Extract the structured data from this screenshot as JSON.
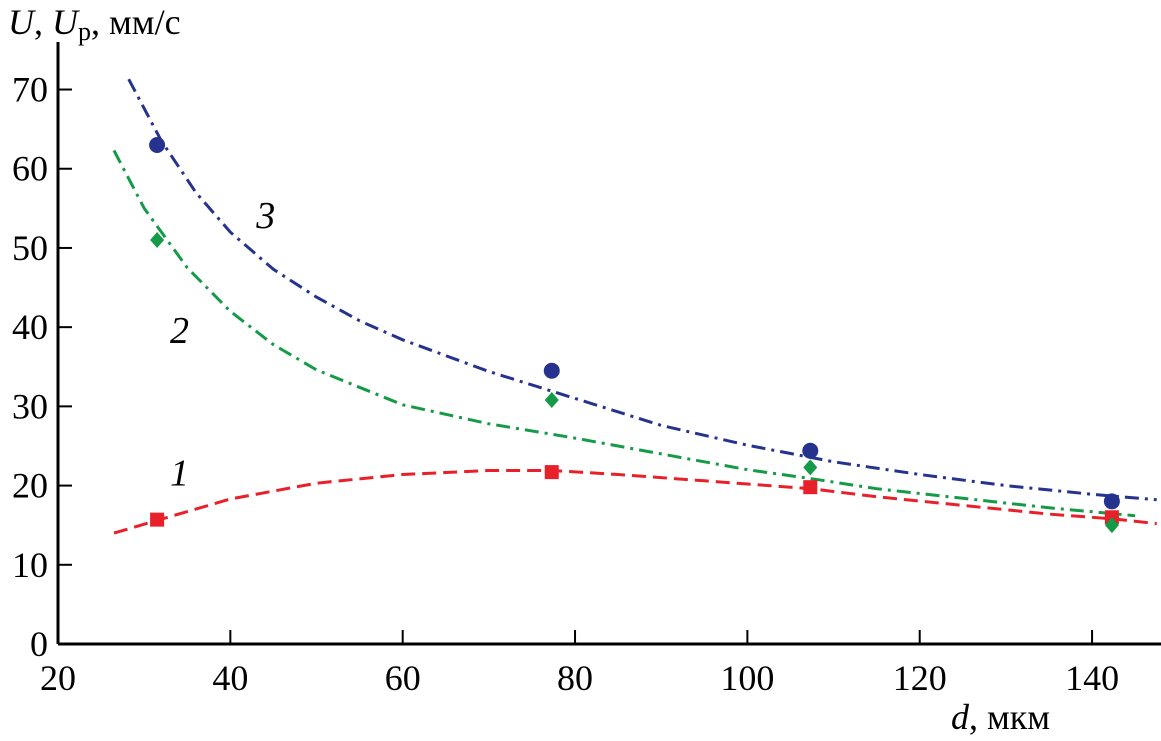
{
  "chart_data": {
    "type": "scatter",
    "title": "",
    "ylabel": {
      "main": "U",
      "sep": ", ",
      "sub_base": "U",
      "sub": "р",
      "unit": ", мм/с"
    },
    "xlabel": {
      "var": "d",
      "unit": ", мкм"
    },
    "xlim": [
      20,
      148
    ],
    "ylim": [
      0,
      76
    ],
    "xticks": [
      20,
      40,
      60,
      80,
      100,
      120,
      140
    ],
    "yticks": [
      0,
      10,
      20,
      30,
      40,
      50,
      60,
      70
    ],
    "grid": false,
    "series": [
      {
        "name": "1",
        "color": "#e8202a",
        "marker": "square",
        "line_style": "dashed",
        "points": [
          [
            31.5,
            15.7
          ],
          [
            77.3,
            21.7
          ],
          [
            107.3,
            19.8
          ],
          [
            142.3,
            16.0
          ]
        ],
        "curve": [
          [
            26.5,
            14.0
          ],
          [
            31.5,
            15.6
          ],
          [
            40,
            18.3
          ],
          [
            50,
            20.3
          ],
          [
            60,
            21.4
          ],
          [
            70,
            21.9
          ],
          [
            77.3,
            21.9
          ],
          [
            85,
            21.4
          ],
          [
            95,
            20.6
          ],
          [
            107.3,
            19.6
          ],
          [
            115,
            18.6
          ],
          [
            125,
            17.5
          ],
          [
            135,
            16.4
          ],
          [
            142.3,
            15.8
          ],
          [
            147.5,
            15.2
          ]
        ],
        "label_position": [
          33,
          20
        ]
      },
      {
        "name": "2",
        "color": "#159a48",
        "marker": "diamond",
        "line_style": "dash-dot",
        "points": [
          [
            31.5,
            51.0
          ],
          [
            77.3,
            30.8
          ],
          [
            107.3,
            22.3
          ],
          [
            142.3,
            15.0
          ]
        ],
        "curve": [
          [
            26.5,
            62.3
          ],
          [
            30,
            55.0
          ],
          [
            35,
            47.5
          ],
          [
            40,
            42.0
          ],
          [
            45,
            37.8
          ],
          [
            50,
            34.6
          ],
          [
            60,
            30.2
          ],
          [
            70,
            27.8
          ],
          [
            80,
            26.0
          ],
          [
            90,
            24.0
          ],
          [
            100,
            22.0
          ],
          [
            107.3,
            20.9
          ],
          [
            115,
            19.6
          ],
          [
            125,
            18.4
          ],
          [
            135,
            17.2
          ],
          [
            145,
            16.2
          ]
        ],
        "label_position": [
          33,
          38
        ]
      },
      {
        "name": "3",
        "color": "#25338f",
        "marker": "circle",
        "line_style": "dash-dot",
        "points": [
          [
            31.5,
            63.0
          ],
          [
            77.3,
            34.5
          ],
          [
            107.3,
            24.4
          ],
          [
            142.3,
            18.0
          ]
        ],
        "curve": [
          [
            28.2,
            71.3
          ],
          [
            32,
            63.5
          ],
          [
            36,
            57.0
          ],
          [
            40,
            52.0
          ],
          [
            45,
            47.3
          ],
          [
            50,
            43.8
          ],
          [
            55,
            40.8
          ],
          [
            60,
            38.4
          ],
          [
            70,
            34.4
          ],
          [
            80,
            31.0
          ],
          [
            90,
            27.6
          ],
          [
            100,
            25.1
          ],
          [
            110,
            23.0
          ],
          [
            120,
            21.4
          ],
          [
            130,
            20.0
          ],
          [
            140,
            18.9
          ],
          [
            147.5,
            18.2
          ]
        ],
        "label_position": [
          43,
          52.5
        ]
      }
    ]
  }
}
